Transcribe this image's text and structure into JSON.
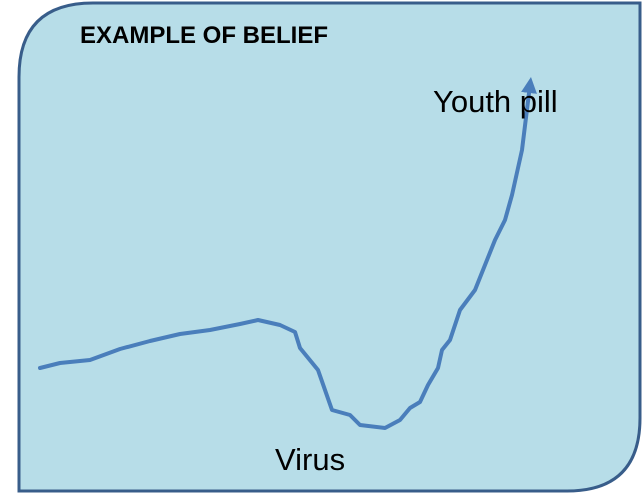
{
  "title": "EXAMPLE OF BELIEF",
  "labels": {
    "peak": "Youth pill",
    "trough": "Virus"
  }
}
